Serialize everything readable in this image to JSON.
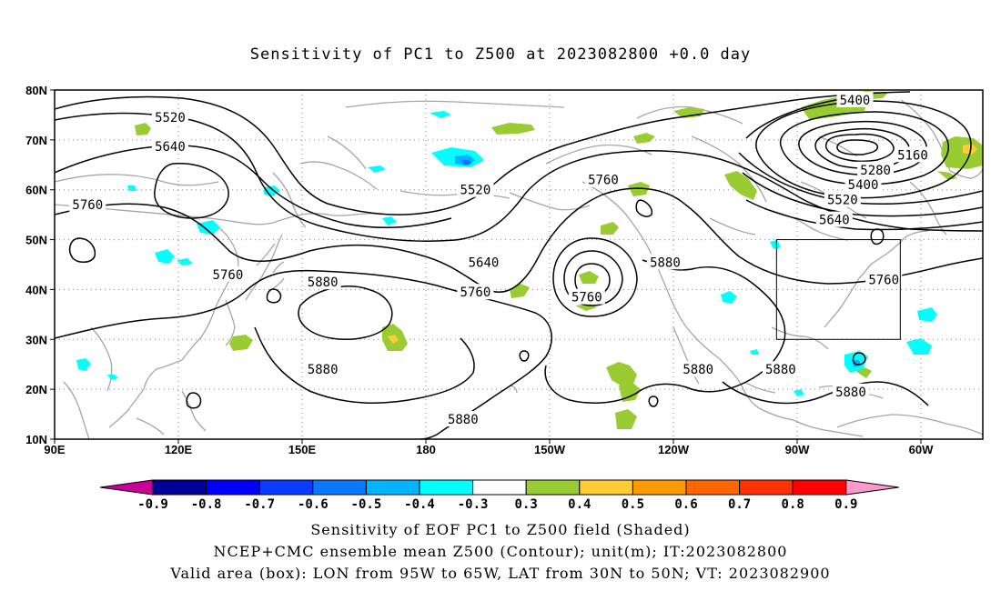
{
  "title": "Sensitivity of PC1 to Z500 at 2023082800 +0.0 day",
  "lat_ticks": [
    {
      "label": "80N",
      "v": 80
    },
    {
      "label": "70N",
      "v": 70
    },
    {
      "label": "60N",
      "v": 60
    },
    {
      "label": "50N",
      "v": 50
    },
    {
      "label": "40N",
      "v": 40
    },
    {
      "label": "30N",
      "v": 30
    },
    {
      "label": "20N",
      "v": 20
    },
    {
      "label": "10N",
      "v": 10
    }
  ],
  "lon_ticks": [
    {
      "label": "90E",
      "v": 90
    },
    {
      "label": "120E",
      "v": 120
    },
    {
      "label": "150E",
      "v": 150
    },
    {
      "label": "180",
      "v": 180
    },
    {
      "label": "150W",
      "v": 210
    },
    {
      "label": "120W",
      "v": 240
    },
    {
      "label": "90W",
      "v": 270
    },
    {
      "label": "60W",
      "v": 300
    }
  ],
  "map_extent": {
    "lon_min": 90,
    "lon_max": 315,
    "lat_min": 10,
    "lat_max": 80
  },
  "contour_labels": [
    {
      "text": "5520",
      "lon": 118,
      "lat": 74.5
    },
    {
      "text": "5640",
      "lon": 118,
      "lat": 68.7
    },
    {
      "text": "5760",
      "lon": 98,
      "lat": 57
    },
    {
      "text": "5760",
      "lon": 132,
      "lat": 43
    },
    {
      "text": "5880",
      "lon": 155,
      "lat": 41.5
    },
    {
      "text": "5880",
      "lon": 155,
      "lat": 24
    },
    {
      "text": "5880",
      "lon": 189,
      "lat": 14
    },
    {
      "text": "5520",
      "lon": 192,
      "lat": 60
    },
    {
      "text": "5640",
      "lon": 194,
      "lat": 45.5
    },
    {
      "text": "5760",
      "lon": 192,
      "lat": 39.5
    },
    {
      "text": "5760",
      "lon": 223,
      "lat": 62
    },
    {
      "text": "5760",
      "lon": 219,
      "lat": 38.5
    },
    {
      "text": "5880",
      "lon": 238,
      "lat": 45.5
    },
    {
      "text": "5880",
      "lon": 246,
      "lat": 24
    },
    {
      "text": "5880",
      "lon": 266,
      "lat": 24
    },
    {
      "text": "5880",
      "lon": 283,
      "lat": 19.5
    },
    {
      "text": "5760",
      "lon": 291,
      "lat": 42
    },
    {
      "text": "5400",
      "lon": 284,
      "lat": 78
    },
    {
      "text": "5160",
      "lon": 298,
      "lat": 67
    },
    {
      "text": "5280",
      "lon": 289,
      "lat": 64
    },
    {
      "text": "5400",
      "lon": 286,
      "lat": 61
    },
    {
      "text": "5520",
      "lon": 281,
      "lat": 58
    },
    {
      "text": "5640",
      "lon": 279,
      "lat": 54
    }
  ],
  "valid_box": {
    "lon_min": 265,
    "lon_max": 295,
    "lat_min": 30,
    "lat_max": 50
  },
  "colorbar": {
    "labels": [
      "-0.9",
      "-0.8",
      "-0.7",
      "-0.6",
      "-0.5",
      "-0.4",
      "-0.3",
      "0.3",
      "0.4",
      "0.5",
      "0.6",
      "0.7",
      "0.8",
      "0.9"
    ],
    "colors": [
      "#000099",
      "#0000ff",
      "#0a3cff",
      "#0a78ff",
      "#00b4ff",
      "#00ffff",
      "#ffffff",
      "#99cc33",
      "#ffcc33",
      "#ff9900",
      "#ff6600",
      "#ff3300",
      "#ff0000"
    ],
    "low_tip_color": "#cc0099",
    "high_tip_color": "#ff99cc"
  },
  "footer": {
    "line1": "Sensitivity of EOF PC1 to Z500 field (Shaded)",
    "line2": "NCEP+CMC ensemble mean Z500 (Contour); unit(m); IT:2023082800",
    "line3": "Valid area (box): LON from 95W to 65W, LAT from 30N to 50N; VT: 2023082900"
  }
}
